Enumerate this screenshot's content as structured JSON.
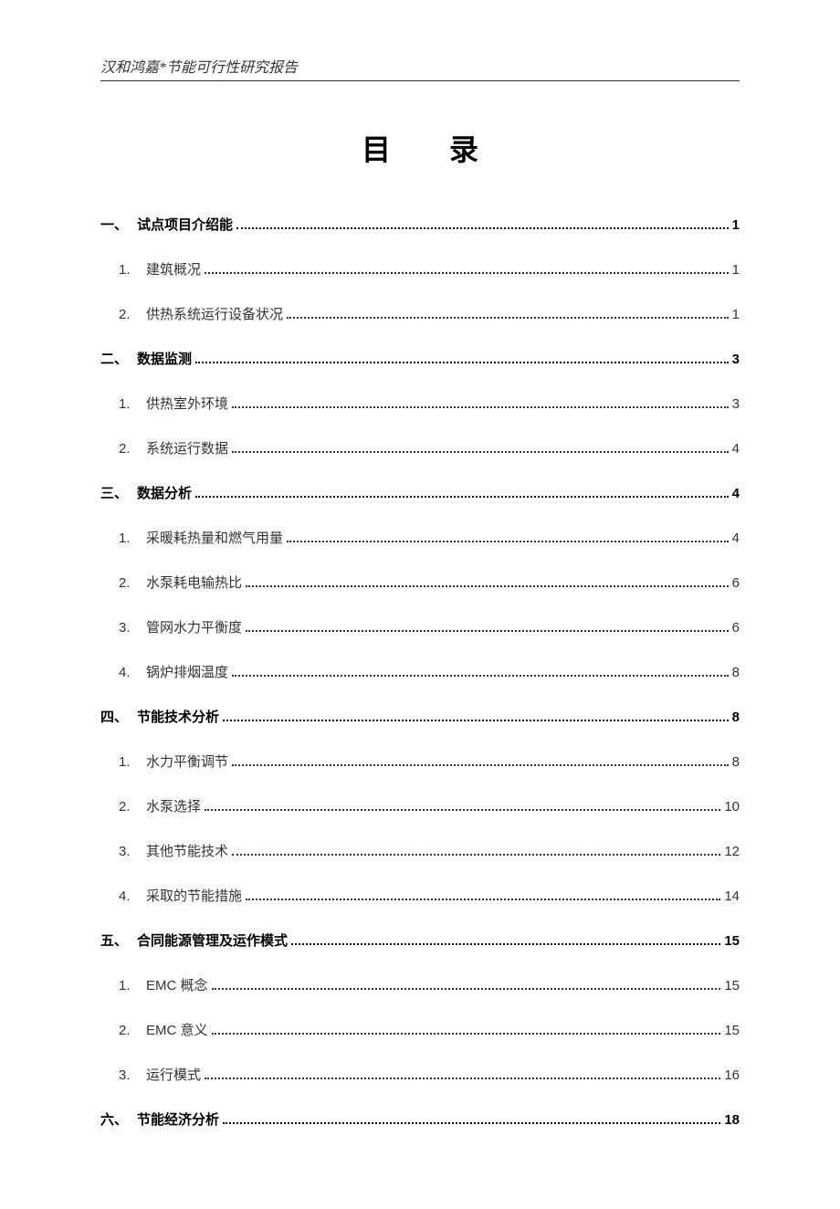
{
  "header_text": "汉和鸿嘉*节能可行性研究报告",
  "title": "目 录",
  "toc": [
    {
      "level": 1,
      "num": "一、",
      "label": "试点项目介绍能",
      "page": "1"
    },
    {
      "level": 2,
      "num": "1.",
      "label": "建筑概况",
      "page": "1"
    },
    {
      "level": 2,
      "num": "2.",
      "label": "供热系统运行设备状况",
      "page": "1"
    },
    {
      "level": 1,
      "num": "二、",
      "label": "数据监测",
      "page": "3"
    },
    {
      "level": 2,
      "num": "1.",
      "label": "供热室外环境",
      "page": "3"
    },
    {
      "level": 2,
      "num": "2.",
      "label": "系统运行数据",
      "page": "4"
    },
    {
      "level": 1,
      "num": "三、",
      "label": "数据分析",
      "page": "4"
    },
    {
      "level": 2,
      "num": "1.",
      "label": "采暖耗热量和燃气用量",
      "page": "4"
    },
    {
      "level": 2,
      "num": "2.",
      "label": "水泵耗电输热比",
      "page": "6"
    },
    {
      "level": 2,
      "num": "3.",
      "label": "管网水力平衡度",
      "page": "6"
    },
    {
      "level": 2,
      "num": "4.",
      "label": "锅炉排烟温度",
      "page": "8"
    },
    {
      "level": 1,
      "num": "四、",
      "label": "节能技术分析",
      "page": "8"
    },
    {
      "level": 2,
      "num": "1.",
      "label": "水力平衡调节",
      "page": "8"
    },
    {
      "level": 2,
      "num": "2.",
      "label": "水泵选择",
      "page": "10"
    },
    {
      "level": 2,
      "num": "3.",
      "label": "其他节能技术",
      "page": "12"
    },
    {
      "level": 2,
      "num": "4.",
      "label": "采取的节能措施",
      "page": "14"
    },
    {
      "level": 1,
      "num": "五、",
      "label": "合同能源管理及运作模式",
      "page": "15"
    },
    {
      "level": 2,
      "num": "1.",
      "label": "EMC 概念",
      "page": "15"
    },
    {
      "level": 2,
      "num": "2.",
      "label": "EMC 意义",
      "page": "15"
    },
    {
      "level": 2,
      "num": "3.",
      "label": "运行模式",
      "page": "16"
    },
    {
      "level": 1,
      "num": "六、",
      "label": "节能经济分析",
      "page": "18"
    }
  ],
  "colors": {
    "background": "#ffffff",
    "text_primary": "#000000",
    "text_secondary": "#333333",
    "border": "#333333"
  },
  "typography": {
    "header_fontsize": 16,
    "title_fontsize": 32,
    "toc_fontsize": 15
  }
}
